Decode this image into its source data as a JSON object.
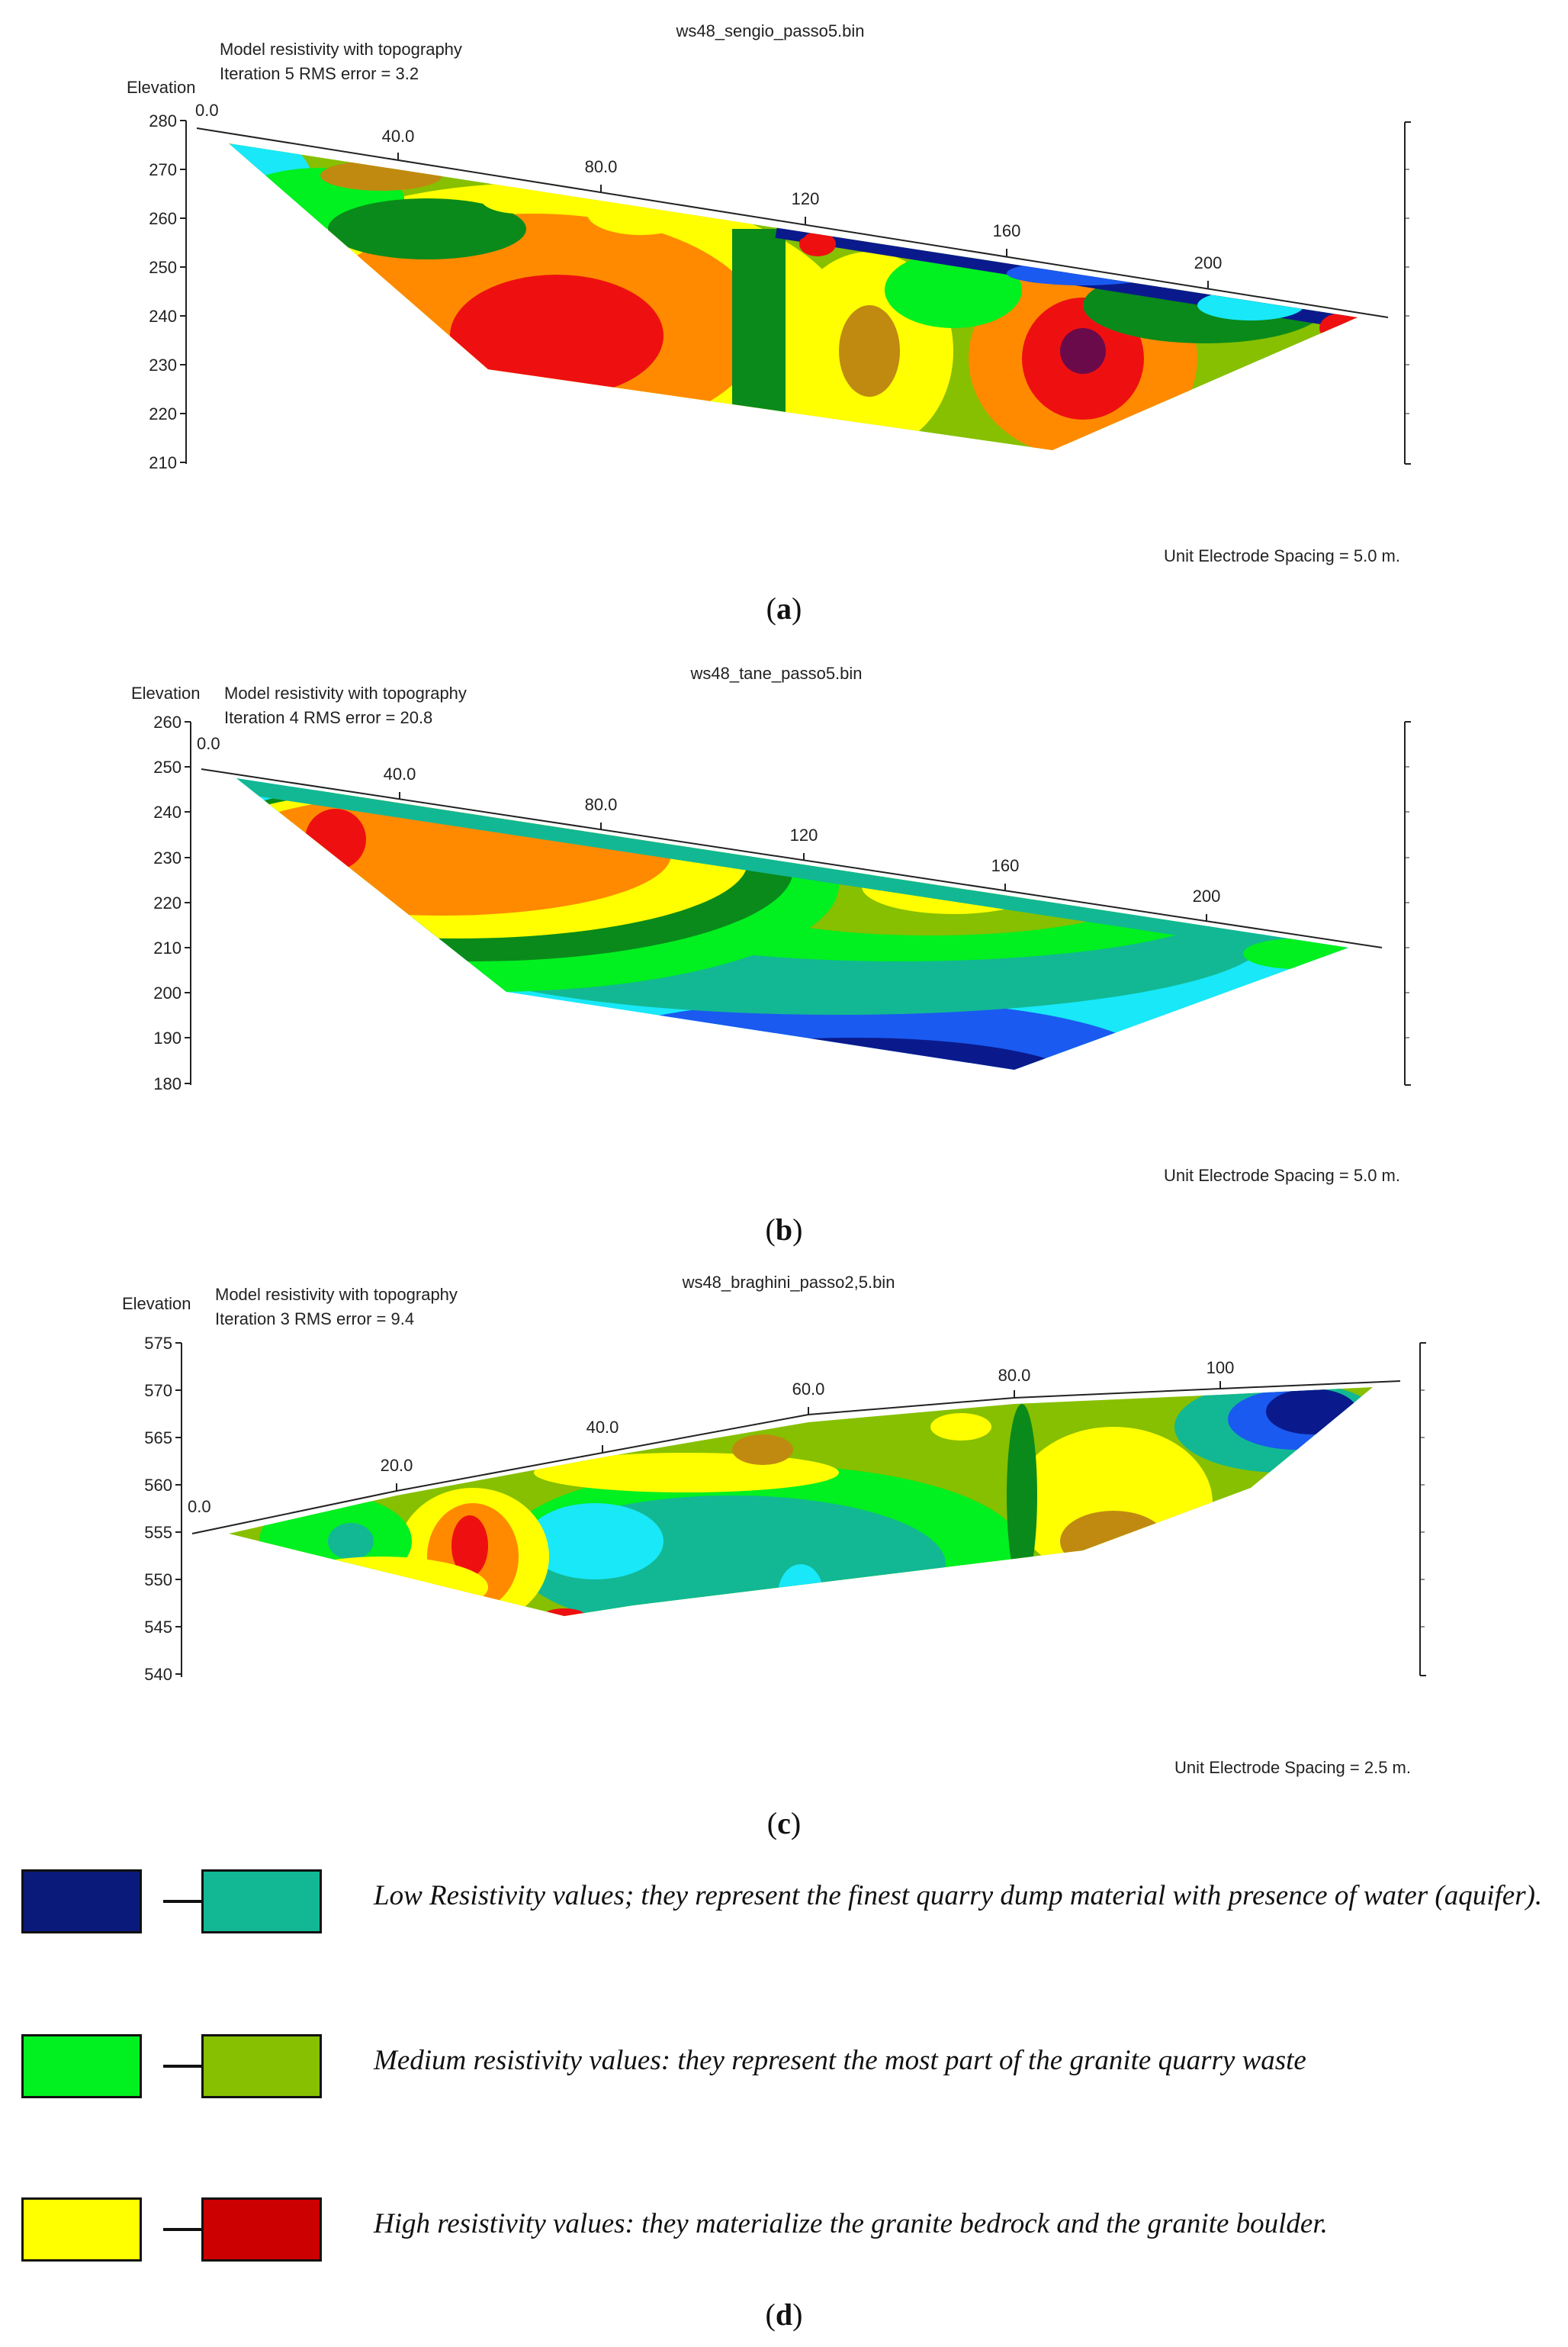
{
  "chart_data": [
    {
      "type": "heatmap",
      "file_title": "ws48_sengio_passo5.bin",
      "model_label": "Model resistivity with topography",
      "iteration_label": "Iteration 5 RMS error = 3.2",
      "ylabel": "Elevation",
      "y_ticks": [
        "280",
        "270",
        "260",
        "250",
        "240",
        "230",
        "220",
        "210"
      ],
      "ylim": [
        210,
        280
      ],
      "x_ticks": [
        "0.0",
        "40.0",
        "80.0",
        "120",
        "160",
        "200"
      ],
      "electrode_spacing": "Unit Electrode Spacing = 5.0 m.",
      "caption": "a"
    },
    {
      "type": "heatmap",
      "file_title": "ws48_tane_passo5.bin",
      "model_label": "Model resistivity with topography",
      "iteration_label": "Iteration 4 RMS error = 20.8",
      "ylabel": "Elevation",
      "y_ticks": [
        "260",
        "250",
        "240",
        "230",
        "220",
        "210",
        "200",
        "190",
        "180"
      ],
      "ylim": [
        180,
        260
      ],
      "x_ticks": [
        "0.0",
        "40.0",
        "80.0",
        "120",
        "160",
        "200"
      ],
      "electrode_spacing": "Unit Electrode Spacing = 5.0 m.",
      "caption": "b"
    },
    {
      "type": "heatmap",
      "file_title": "ws48_braghini_passo2,5.bin",
      "model_label": "Model resistivity with topography",
      "iteration_label": "Iteration 3 RMS error = 9.4",
      "ylabel": "Elevation",
      "y_ticks": [
        "575",
        "570",
        "565",
        "560",
        "555",
        "550",
        "545",
        "540"
      ],
      "ylim": [
        540,
        575
      ],
      "x_ticks": [
        "0.0",
        "20.0",
        "40.0",
        "60.0",
        "80.0",
        "100"
      ],
      "electrode_spacing": "Unit Electrode Spacing = 2.5 m.",
      "caption": "c"
    }
  ],
  "legend": {
    "caption": "d",
    "rows": [
      {
        "from_color": "#0a1a7a",
        "to_color": "#12b894",
        "text": "Low Resistivity values; they represent the finest quarry dump material with presence of water (aquifer)."
      },
      {
        "from_color": "#00f020",
        "to_color": "#86c000",
        "text": "Medium resistivity values: they represent the most part of the granite quarry waste"
      },
      {
        "from_color": "#ffff00",
        "to_color": "#cc0000",
        "text": "High resistivity values: they materialize the granite bedrock and the granite boulder."
      }
    ]
  },
  "colors": {
    "dark_blue": "#0a1a8c",
    "blue": "#1a5af0",
    "cyan": "#18e8f8",
    "teal": "#12b894",
    "green": "#00f020",
    "dark_green": "#0a8a1a",
    "yellow_green": "#86c000",
    "yellow": "#ffff00",
    "brown": "#c08a10",
    "orange": "#ff8a00",
    "red": "#ee1010",
    "purple": "#6a0a4a"
  }
}
